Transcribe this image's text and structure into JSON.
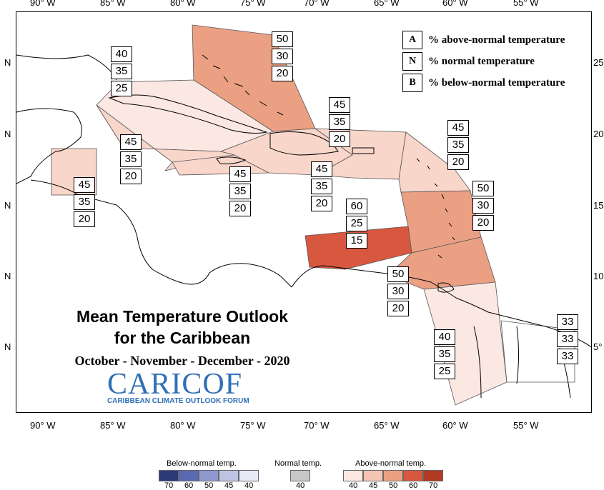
{
  "legend_key": [
    {
      "code": "A",
      "text": "% above-normal temperature"
    },
    {
      "code": "N",
      "text": "% normal temperature"
    },
    {
      "code": "B",
      "text": "% below-normal temperature"
    }
  ],
  "title_line1": "Mean Temperature Outlook",
  "title_line2": "for the Caribbean",
  "subtitle": "October - November - December - 2020",
  "logo_main": "CARICOF",
  "logo_sub": "CARIBBEAN CLIMATE OUTLOOK FORUM",
  "longitude_labels": [
    "90° W",
    "85° W",
    "80° W",
    "75° W",
    "70° W",
    "65° W",
    "60° W",
    "55° W"
  ],
  "latitude_left": [
    "N",
    "N",
    "N",
    "N",
    "N"
  ],
  "latitude_right": [
    "25",
    "20",
    "15",
    "10",
    "5°"
  ],
  "regions": [
    {
      "name": "bahamas-turks-caicos",
      "above": "50",
      "normal": "30",
      "below": "20",
      "color": "#eba084"
    },
    {
      "name": "cuba",
      "above": "40",
      "normal": "35",
      "below": "25",
      "color": "#fbe8e2"
    },
    {
      "name": "cayman-jamaica-west",
      "above": "45",
      "normal": "35",
      "below": "20",
      "color": "#f9d6ca"
    },
    {
      "name": "belize",
      "above": "45",
      "normal": "35",
      "below": "20",
      "color": "#f9d6ca"
    },
    {
      "name": "jamaica",
      "above": "45",
      "normal": "35",
      "below": "20",
      "color": "#f9d6ca"
    },
    {
      "name": "hispaniola",
      "above": "45",
      "normal": "35",
      "below": "20",
      "color": "#f9d6ca"
    },
    {
      "name": "puerto-rico",
      "above": "45",
      "normal": "35",
      "below": "20",
      "color": "#f9d6ca"
    },
    {
      "name": "northern-lesser-antilles",
      "above": "45",
      "normal": "35",
      "below": "20",
      "color": "#f9d6ca"
    },
    {
      "name": "windward-islands",
      "above": "50",
      "normal": "30",
      "below": "20",
      "color": "#eba084"
    },
    {
      "name": "abc-islands",
      "above": "60",
      "normal": "25",
      "below": "15",
      "color": "#d8583f"
    },
    {
      "name": "trinidad-barbados",
      "above": "50",
      "normal": "30",
      "below": "20",
      "color": "#eba084"
    },
    {
      "name": "guyana-suriname",
      "above": "40",
      "normal": "35",
      "below": "25",
      "color": "#fbe8e2"
    },
    {
      "name": "french-guiana",
      "above": "33",
      "normal": "33",
      "below": "33",
      "color": "#ffffff"
    }
  ],
  "color_scale": {
    "below_title": "Below-normal temp.",
    "normal_title": "Normal temp.",
    "above_title": "Above-normal temp.",
    "below_colors": [
      "#2b3a78",
      "#5a6ab0",
      "#8f98cf",
      "#bfc4e5",
      "#e7e9f6"
    ],
    "below_ticks": [
      "70",
      "60",
      "50",
      "45",
      "40"
    ],
    "normal_color": "#c8c8c8",
    "normal_ticks": [
      "40"
    ],
    "above_colors": [
      "#fbe8e2",
      "#f6c4b2",
      "#eba084",
      "#d8583f",
      "#b23a24"
    ],
    "above_ticks": [
      "40",
      "45",
      "50",
      "60",
      "70"
    ]
  }
}
